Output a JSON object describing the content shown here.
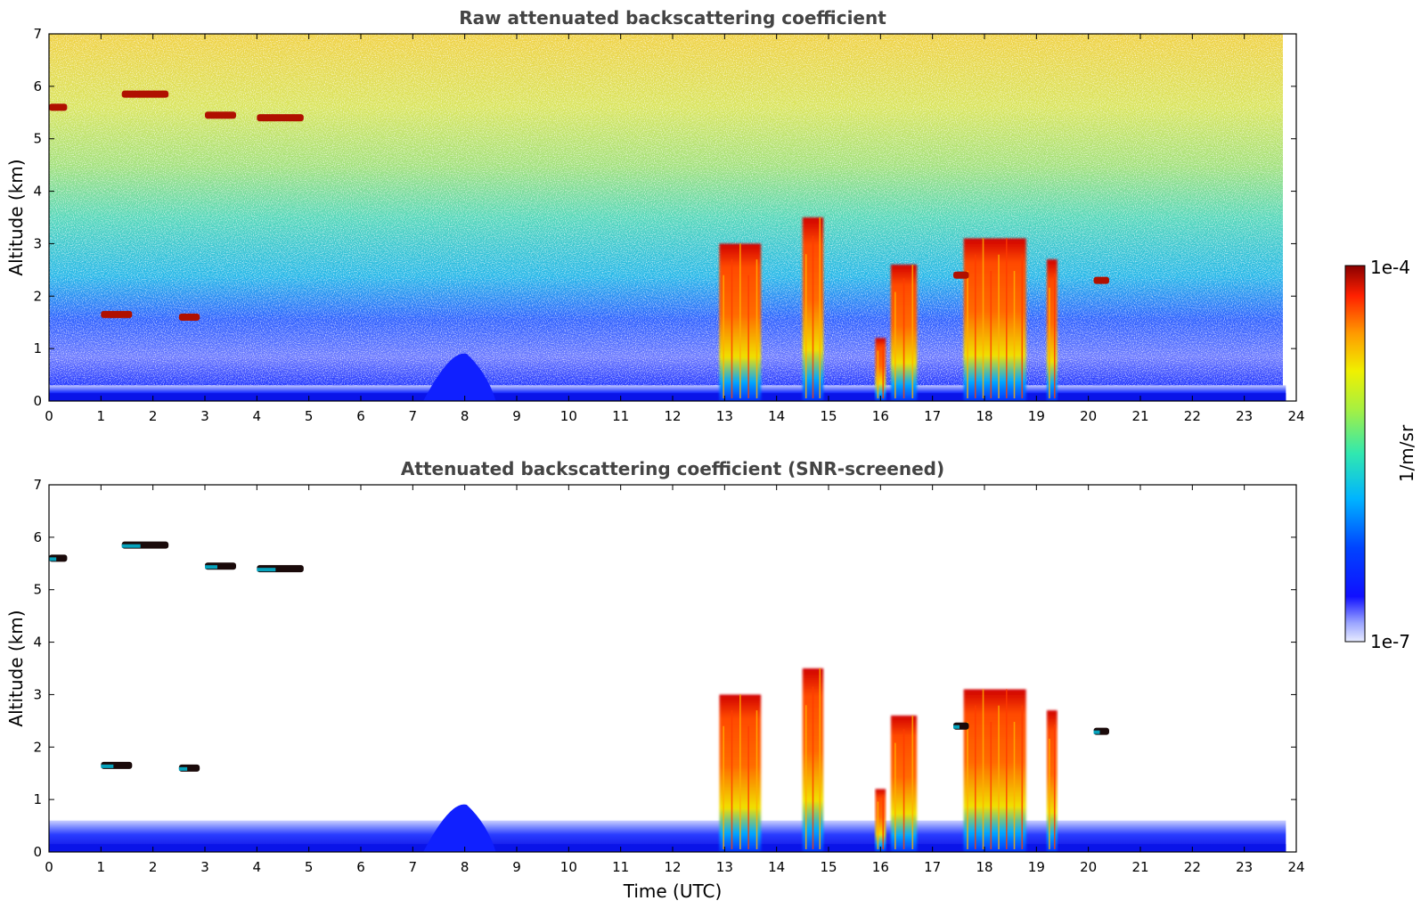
{
  "chart_data": [
    {
      "type": "heatmap",
      "title": "Raw attenuated backscattering coefficient",
      "xlabel": "",
      "ylabel": "Altitude (km)",
      "xlim": [
        0,
        24
      ],
      "ylim": [
        0,
        7
      ],
      "x_ticks": [
        "0",
        "1",
        "2",
        "3",
        "4",
        "5",
        "6",
        "7",
        "8",
        "9",
        "10",
        "11",
        "12",
        "13",
        "14",
        "15",
        "16",
        "17",
        "18",
        "19",
        "20",
        "21",
        "22",
        "23",
        "24"
      ],
      "y_ticks": [
        "0",
        "1",
        "2",
        "3",
        "4",
        "5",
        "6",
        "7"
      ],
      "features": [
        {
          "kind": "boundary_layer",
          "t_start": 0,
          "t_end": 23.8,
          "alt_top": 0.3
        },
        {
          "kind": "aerosol_hump",
          "t_start": 7.2,
          "t_end": 8.6,
          "alt_top": 0.9
        },
        {
          "kind": "cloud_column",
          "t_start": 12.9,
          "t_end": 13.7,
          "alt_top": 3.0
        },
        {
          "kind": "cloud_column",
          "t_start": 14.5,
          "t_end": 14.9,
          "alt_top": 3.5
        },
        {
          "kind": "cloud_column",
          "t_start": 15.9,
          "t_end": 16.1,
          "alt_top": 1.2
        },
        {
          "kind": "cloud_column",
          "t_start": 16.2,
          "t_end": 16.7,
          "alt_top": 2.6
        },
        {
          "kind": "cloud_column",
          "t_start": 17.6,
          "t_end": 18.8,
          "alt_top": 3.1
        },
        {
          "kind": "cloud_column",
          "t_start": 19.2,
          "t_end": 19.4,
          "alt_top": 2.7
        },
        {
          "kind": "cloud_layer",
          "t_start": 0,
          "t_end": 0.35,
          "alt": 5.6
        },
        {
          "kind": "cloud_layer",
          "t_start": 1.4,
          "t_end": 2.3,
          "alt": 5.85
        },
        {
          "kind": "cloud_layer",
          "t_start": 3.0,
          "t_end": 3.6,
          "alt": 5.45
        },
        {
          "kind": "cloud_layer",
          "t_start": 4.0,
          "t_end": 4.9,
          "alt": 5.4
        },
        {
          "kind": "cloud_layer",
          "t_start": 1.0,
          "t_end": 1.6,
          "alt": 1.65
        },
        {
          "kind": "cloud_layer",
          "t_start": 2.5,
          "t_end": 2.9,
          "alt": 1.6
        },
        {
          "kind": "cloud_layer",
          "t_start": 17.4,
          "t_end": 17.7,
          "alt": 2.4
        },
        {
          "kind": "cloud_layer",
          "t_start": 20.1,
          "t_end": 20.4,
          "alt": 2.3
        }
      ]
    },
    {
      "type": "heatmap",
      "title": "Attenuated backscattering coefficient (SNR-screened)",
      "xlabel": "Time (UTC)",
      "ylabel": "Altitude (km)",
      "xlim": [
        0,
        24
      ],
      "ylim": [
        0,
        7
      ],
      "x_ticks": [
        "0",
        "1",
        "2",
        "3",
        "4",
        "5",
        "6",
        "7",
        "8",
        "9",
        "10",
        "11",
        "12",
        "13",
        "14",
        "15",
        "16",
        "17",
        "18",
        "19",
        "20",
        "21",
        "22",
        "23",
        "24"
      ],
      "y_ticks": [
        "0",
        "1",
        "2",
        "3",
        "4",
        "5",
        "6",
        "7"
      ]
    }
  ],
  "colorbar": {
    "label": "1/m/sr",
    "max_label": "1e-4",
    "min_label": "1e-7",
    "colormap": "jet",
    "scale": "log"
  }
}
